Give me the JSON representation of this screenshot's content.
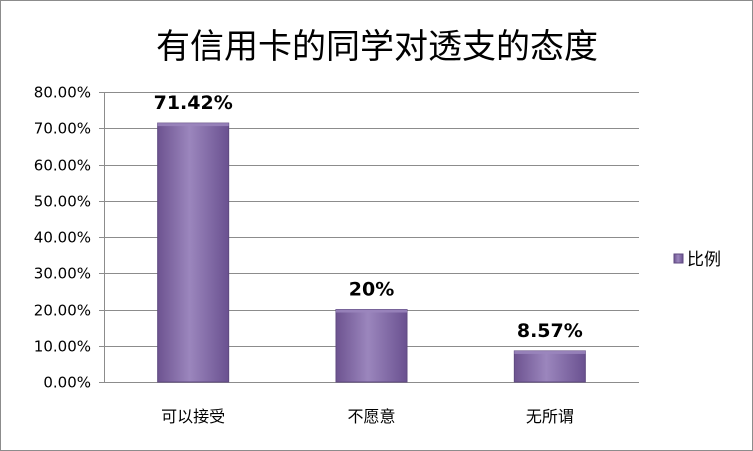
{
  "chart_data": {
    "type": "bar",
    "title": "有信用卡的同学对透支的态度",
    "categories": [
      "可以接受",
      "不愿意",
      "无所谓"
    ],
    "series": [
      {
        "name": "比例",
        "values": [
          71.42,
          20,
          8.57
        ]
      }
    ],
    "data_labels": [
      "71.42%",
      "20%",
      "8.57%"
    ],
    "ylim": [
      0,
      80
    ],
    "yticks": [
      0,
      10,
      20,
      30,
      40,
      50,
      60,
      70,
      80
    ],
    "ytick_labels": [
      "0.00%",
      "10.00%",
      "20.00%",
      "30.00%",
      "40.00%",
      "50.00%",
      "60.00%",
      "70.00%",
      "80.00%"
    ],
    "grid": true,
    "legend": "right",
    "colors": {
      "bar": "#8064a2",
      "bar_light": "#9b86bd",
      "bar_dark": "#5f4a80",
      "grid": "#8c8c8c"
    }
  }
}
